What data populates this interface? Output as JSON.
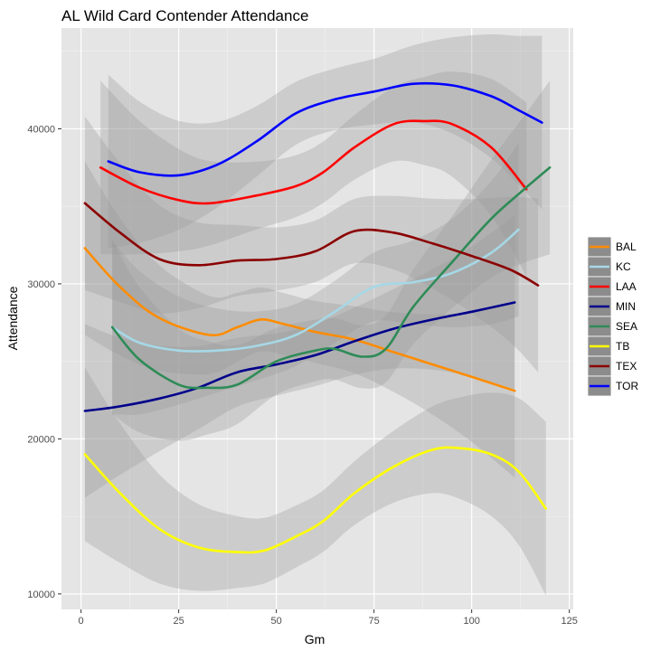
{
  "chart_data": {
    "type": "line",
    "title": "AL Wild Card Contender Attendance",
    "xlabel": "Gm",
    "ylabel": "Attendance",
    "xlim": [
      -5,
      126
    ],
    "ylim": [
      9000,
      46500
    ],
    "x_ticks": [
      0,
      25,
      50,
      75,
      100,
      125
    ],
    "y_ticks": [
      10000,
      20000,
      30000,
      40000
    ],
    "x_tick_labels": [
      "0",
      "25",
      "50",
      "75",
      "100",
      "125"
    ],
    "y_tick_labels": [
      "10000",
      "20000",
      "30000",
      "40000"
    ],
    "grid": true,
    "legend_position": "right",
    "series": [
      {
        "name": "BAL",
        "color": "#ff8c00",
        "x": [
          1,
          10,
          20,
          33,
          40,
          46,
          52,
          60,
          70,
          80,
          90,
          100,
          111
        ],
        "y": [
          32300,
          29800,
          27800,
          26700,
          27200,
          27700,
          27400,
          26900,
          26400,
          25600,
          24800,
          24000,
          23100
        ]
      },
      {
        "name": "KC",
        "color": "#a6d8e6",
        "x": [
          8,
          15,
          25,
          35,
          45,
          55,
          65,
          75,
          85,
          95,
          105,
          112
        ],
        "y": [
          27200,
          26200,
          25700,
          25700,
          26000,
          26700,
          28200,
          29800,
          30100,
          30700,
          32000,
          33500
        ]
      },
      {
        "name": "LAA",
        "color": "#ff0000",
        "x": [
          5,
          15,
          25,
          33,
          45,
          55,
          62,
          70,
          80,
          88,
          95,
          105,
          114
        ],
        "y": [
          37500,
          36200,
          35400,
          35200,
          35700,
          36300,
          37200,
          38800,
          40300,
          40500,
          40300,
          38800,
          36100
        ]
      },
      {
        "name": "MIN",
        "color": "#00008b",
        "x": [
          1,
          10,
          20,
          30,
          40,
          50,
          60,
          70,
          80,
          90,
          100,
          111
        ],
        "y": [
          21800,
          22100,
          22600,
          23300,
          24300,
          24800,
          25400,
          26300,
          27100,
          27700,
          28200,
          28800
        ]
      },
      {
        "name": "SEA",
        "color": "#2e8b57",
        "x": [
          8,
          15,
          25,
          32,
          40,
          50,
          60,
          65,
          72,
          78,
          85,
          95,
          105,
          113,
          120
        ],
        "y": [
          27200,
          25100,
          23500,
          23300,
          23500,
          25000,
          25700,
          25800,
          25300,
          25800,
          28500,
          31400,
          34200,
          36000,
          37500
        ]
      },
      {
        "name": "TB",
        "color": "#ffff00",
        "x": [
          1,
          10,
          20,
          30,
          40,
          47,
          55,
          62,
          70,
          80,
          90,
          97,
          105,
          112,
          119
        ],
        "y": [
          19000,
          16500,
          14200,
          13000,
          12700,
          12800,
          13700,
          14700,
          16500,
          18200,
          19300,
          19400,
          19000,
          17900,
          15500
        ]
      },
      {
        "name": "TEX",
        "color": "#8b0000",
        "x": [
          1,
          10,
          20,
          30,
          40,
          50,
          60,
          70,
          80,
          90,
          100,
          110,
          117
        ],
        "y": [
          35200,
          33300,
          31600,
          31200,
          31500,
          31600,
          32100,
          33400,
          33300,
          32600,
          31800,
          30900,
          29900
        ]
      },
      {
        "name": "TOR",
        "color": "#0000ff",
        "x": [
          7,
          15,
          25,
          35,
          45,
          55,
          65,
          75,
          85,
          95,
          105,
          112,
          118
        ],
        "y": [
          37900,
          37200,
          37000,
          37700,
          39200,
          41000,
          41900,
          42400,
          42900,
          42800,
          42100,
          41200,
          40400
        ]
      }
    ]
  }
}
